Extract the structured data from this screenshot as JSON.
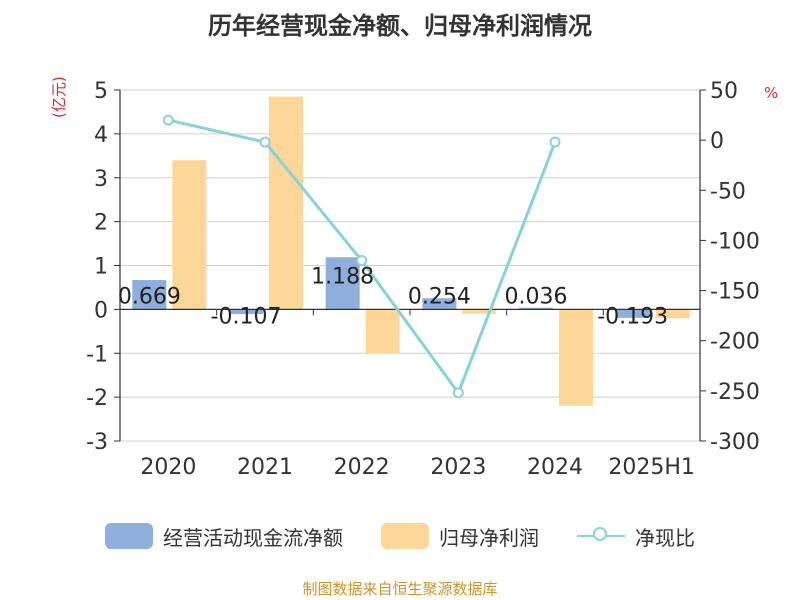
{
  "chart_data": {
    "type": "bar+line",
    "title": "历年经营现金净额、归母净利润情况",
    "left_axis_unit": "(亿元)",
    "right_axis_unit": "%",
    "categories": [
      "2020",
      "2021",
      "2022",
      "2023",
      "2024",
      "2025H1"
    ],
    "left_ylim": [
      -3,
      5
    ],
    "left_ticks": [
      5,
      4,
      3,
      2,
      1,
      0,
      -1,
      -2,
      -3
    ],
    "right_ylim": [
      -300,
      50
    ],
    "right_ticks": [
      50,
      0,
      -50,
      -100,
      -150,
      -200,
      -250,
      -300
    ],
    "series": [
      {
        "name": "经营活动现金流净额",
        "type": "bar",
        "axis": "left",
        "color": "#8eaedb",
        "values": [
          0.669,
          -0.107,
          1.188,
          0.254,
          0.036,
          -0.193
        ],
        "labels": [
          "0.669",
          "-0.107",
          "1.188",
          "0.254",
          "0.036",
          "-0.193"
        ]
      },
      {
        "name": "归母净利润",
        "type": "bar",
        "axis": "left",
        "color": "#fdd797",
        "values": [
          3.4,
          4.85,
          -1.0,
          -0.1,
          -2.2,
          -0.2
        ]
      },
      {
        "name": "净现比",
        "type": "line",
        "axis": "right",
        "color": "#88d2d9",
        "values": [
          20,
          -2,
          -120,
          -252,
          -2,
          null
        ]
      }
    ],
    "grid": true,
    "legend_position": "bottom"
  },
  "source_text": "制图数据来自恒生聚源数据库"
}
